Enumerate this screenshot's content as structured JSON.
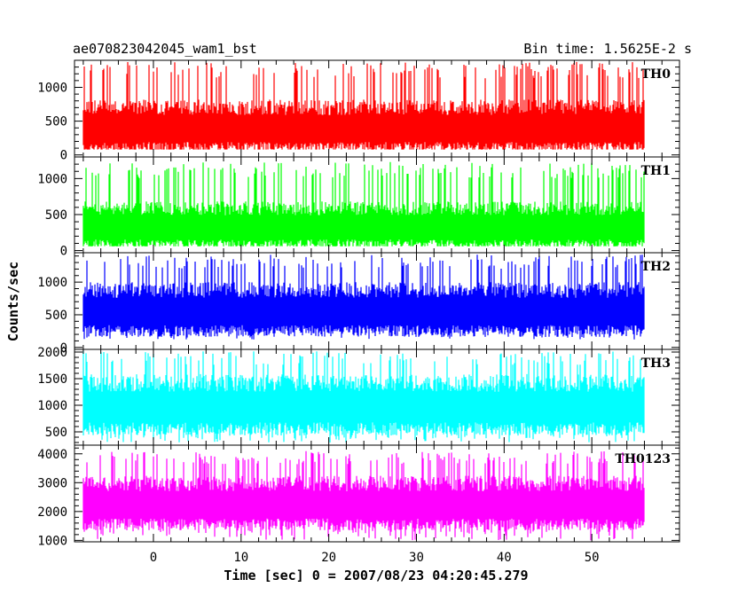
{
  "header": {
    "title": "ae070823042045_wam1_bst",
    "bin_time": "Bin time: 1.5625E-2 s"
  },
  "chart_data": {
    "type": "line",
    "xlabel": "Time [sec] 0 = 2007/08/23 04:20:45.279",
    "ylabel": "Counts/sec",
    "xlim": [
      -9,
      60
    ],
    "x_data_range": [
      -8,
      56
    ],
    "bin_time_s": 0.015625,
    "x_ticks": [
      0,
      10,
      20,
      30,
      40,
      50
    ],
    "panels": [
      {
        "name": "TH0",
        "color": "#ff0000",
        "ylim": [
          -30,
          1400
        ],
        "y_ticks": [
          0,
          500,
          1000
        ],
        "baseline": 400,
        "spread": 380,
        "spike_max": 1380,
        "min_floor": 80
      },
      {
        "name": "TH1",
        "color": "#00ff00",
        "ylim": [
          -30,
          1300
        ],
        "y_ticks": [
          0,
          500,
          1000
        ],
        "baseline": 330,
        "spread": 320,
        "spike_max": 1230,
        "min_floor": 60
      },
      {
        "name": "TH2",
        "color": "#0000ff",
        "ylim": [
          -30,
          1450
        ],
        "y_ticks": [
          0,
          500,
          1000
        ],
        "baseline": 560,
        "spread": 400,
        "spike_max": 1420,
        "min_floor": 120
      },
      {
        "name": "TH3",
        "color": "#00ffff",
        "ylim": [
          250,
          2050
        ],
        "y_ticks": [
          500,
          1000,
          1500,
          2000
        ],
        "baseline": 980,
        "spread": 550,
        "spike_max": 2020,
        "min_floor": 300
      },
      {
        "name": "TH0123",
        "color": "#ff00ff",
        "ylim": [
          950,
          4300
        ],
        "y_ticks": [
          1000,
          2000,
          3000,
          4000
        ],
        "baseline": 2250,
        "spread": 900,
        "spike_max": 4100,
        "min_floor": 1000
      }
    ]
  }
}
